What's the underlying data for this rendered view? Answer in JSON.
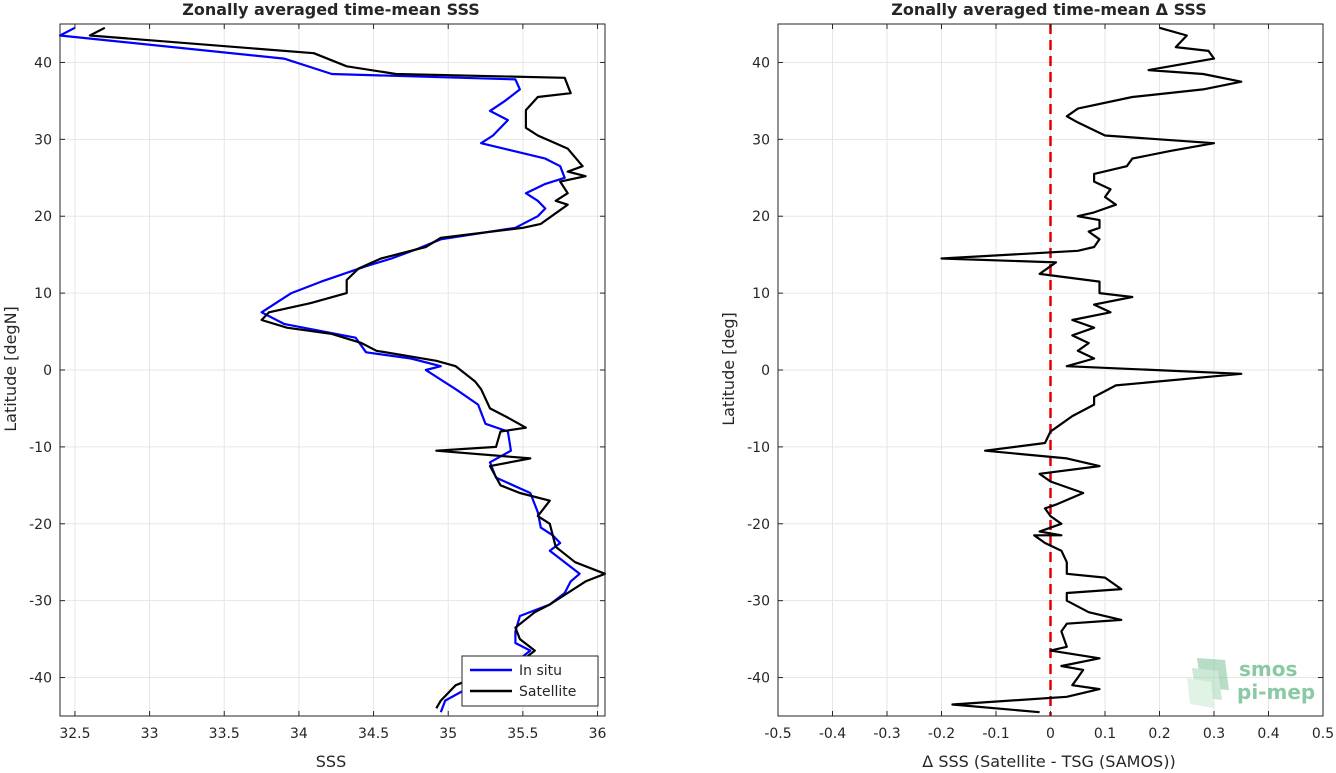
{
  "chart_data": [
    {
      "type": "line",
      "title": "Zonally averaged time-mean SSS",
      "xlabel": "SSS",
      "ylabel": "Latitude [degN]",
      "xlim": [
        32.4,
        36.05
      ],
      "ylim": [
        -45,
        45
      ],
      "xticks": [
        32.5,
        33,
        33.5,
        34,
        34.5,
        35,
        35.5,
        36
      ],
      "xtick_labels": [
        "32.5",
        "33",
        "33.5",
        "34",
        "34.5",
        "35",
        "35.5",
        "36"
      ],
      "yticks": [
        -40,
        -30,
        -20,
        -10,
        0,
        10,
        20,
        30,
        40
      ],
      "ytick_labels": [
        "-40",
        "-30",
        "-20",
        "-10",
        "0",
        "10",
        "20",
        "30",
        "40"
      ],
      "grid": true,
      "legend_position": "bottom-right",
      "series": [
        {
          "name": "In situ",
          "color": "#0000ff",
          "points": [
            [
              32.5,
              44.5
            ],
            [
              32.4,
              43.5
            ],
            [
              33.9,
              40.5
            ],
            [
              34.22,
              38.5
            ],
            [
              35.45,
              37.8
            ],
            [
              35.48,
              36.5
            ],
            [
              35.38,
              35
            ],
            [
              35.28,
              33.7
            ],
            [
              35.4,
              32.5
            ],
            [
              35.3,
              30.5
            ],
            [
              35.22,
              29.5
            ],
            [
              35.65,
              27.5
            ],
            [
              35.75,
              26.5
            ],
            [
              35.78,
              25
            ],
            [
              35.65,
              24.2
            ],
            [
              35.52,
              23
            ],
            [
              35.6,
              22
            ],
            [
              35.65,
              21
            ],
            [
              35.6,
              20
            ],
            [
              35.45,
              18.5
            ],
            [
              34.95,
              17
            ],
            [
              34.8,
              15.8
            ],
            [
              34.62,
              14.5
            ],
            [
              34.45,
              13.5
            ],
            [
              34.15,
              11.5
            ],
            [
              33.95,
              10
            ],
            [
              33.75,
              7.5
            ],
            [
              33.9,
              6
            ],
            [
              34.38,
              4.2
            ],
            [
              34.45,
              2.3
            ],
            [
              34.75,
              1.5
            ],
            [
              34.95,
              0.5
            ],
            [
              34.85,
              0
            ],
            [
              35.05,
              -2.5
            ],
            [
              35.2,
              -4.5
            ],
            [
              35.25,
              -7
            ],
            [
              35.4,
              -8
            ],
            [
              35.42,
              -10.5
            ],
            [
              35.28,
              -12
            ],
            [
              35.32,
              -14
            ],
            [
              35.55,
              -16
            ],
            [
              35.6,
              -18.5
            ],
            [
              35.62,
              -20.5
            ],
            [
              35.7,
              -21.5
            ],
            [
              35.75,
              -22.5
            ],
            [
              35.68,
              -23.5
            ],
            [
              35.78,
              -25
            ],
            [
              35.88,
              -26.5
            ],
            [
              35.82,
              -27.5
            ],
            [
              35.78,
              -29
            ],
            [
              35.68,
              -30.5
            ],
            [
              35.48,
              -32
            ],
            [
              35.45,
              -34
            ],
            [
              35.45,
              -35.5
            ],
            [
              35.55,
              -36.5
            ],
            [
              35.45,
              -38
            ],
            [
              35.18,
              -40
            ],
            [
              35.12,
              -41.5
            ],
            [
              34.98,
              -43
            ],
            [
              34.95,
              -44.5
            ]
          ]
        },
        {
          "name": "Satellite",
          "color": "#000000",
          "points": [
            [
              32.7,
              44.5
            ],
            [
              32.6,
              43.5
            ],
            [
              34.1,
              41.2
            ],
            [
              34.32,
              39.5
            ],
            [
              34.65,
              38.5
            ],
            [
              35.78,
              38
            ],
            [
              35.82,
              36
            ],
            [
              35.6,
              35.5
            ],
            [
              35.52,
              33.8
            ],
            [
              35.52,
              31.5
            ],
            [
              35.6,
              30.5
            ],
            [
              35.8,
              28.8
            ],
            [
              35.9,
              26.5
            ],
            [
              35.8,
              25.8
            ],
            [
              35.92,
              25.2
            ],
            [
              35.75,
              24.5
            ],
            [
              35.8,
              23
            ],
            [
              35.72,
              22
            ],
            [
              35.8,
              21.5
            ],
            [
              35.62,
              19
            ],
            [
              35.5,
              18.5
            ],
            [
              34.95,
              17.2
            ],
            [
              34.85,
              16
            ],
            [
              34.55,
              14.5
            ],
            [
              34.4,
              13.2
            ],
            [
              34.32,
              11.7
            ],
            [
              34.32,
              10
            ],
            [
              34.08,
              8.7
            ],
            [
              33.8,
              7.5
            ],
            [
              33.75,
              6.5
            ],
            [
              33.92,
              5.5
            ],
            [
              34.22,
              4.7
            ],
            [
              34.42,
              3.5
            ],
            [
              34.52,
              2.5
            ],
            [
              34.92,
              1.2
            ],
            [
              35.05,
              0.5
            ],
            [
              35.18,
              -1.5
            ],
            [
              35.22,
              -2.5
            ],
            [
              35.28,
              -5
            ],
            [
              35.38,
              -6
            ],
            [
              35.52,
              -7.5
            ],
            [
              35.35,
              -8
            ],
            [
              35.32,
              -10
            ],
            [
              34.92,
              -10.5
            ],
            [
              35.55,
              -11.5
            ],
            [
              35.28,
              -12.5
            ],
            [
              35.35,
              -15
            ],
            [
              35.48,
              -16
            ],
            [
              35.68,
              -17
            ],
            [
              35.6,
              -19
            ],
            [
              35.68,
              -20
            ],
            [
              35.72,
              -23
            ],
            [
              35.85,
              -25
            ],
            [
              36.05,
              -26.5
            ],
            [
              35.92,
              -27.5
            ],
            [
              35.68,
              -30.5
            ],
            [
              35.58,
              -31.5
            ],
            [
              35.45,
              -33.5
            ],
            [
              35.48,
              -35
            ],
            [
              35.58,
              -36.5
            ],
            [
              35.48,
              -38
            ],
            [
              35.18,
              -40
            ],
            [
              35.05,
              -41
            ],
            [
              34.95,
              -43
            ],
            [
              34.92,
              -44
            ]
          ]
        }
      ]
    },
    {
      "type": "line",
      "title": "Zonally averaged time-mean Δ SSS",
      "xlabel": "Δ SSS (Satellite - TSG (SAMOS))",
      "ylabel": "Latitude [deg]",
      "xlim": [
        -0.5,
        0.5
      ],
      "ylim": [
        -45,
        45
      ],
      "xticks": [
        -0.5,
        -0.4,
        -0.3,
        -0.2,
        -0.1,
        0,
        0.1,
        0.2,
        0.3,
        0.4,
        0.5
      ],
      "xtick_labels": [
        "-0.5",
        "-0.4",
        "-0.3",
        "-0.2",
        "-0.1",
        "0",
        "0.1",
        "0.2",
        "0.3",
        "0.4",
        "0.5"
      ],
      "yticks": [
        -40,
        -30,
        -20,
        -10,
        0,
        10,
        20,
        30,
        40
      ],
      "ytick_labels": [
        "-40",
        "-30",
        "-20",
        "-10",
        "0",
        "10",
        "20",
        "30",
        "40"
      ],
      "grid": true,
      "reference_line": {
        "x": 0,
        "color": "#e00000",
        "style": "dashed"
      },
      "series": [
        {
          "color": "#000000",
          "points": [
            [
              0.2,
              44.5
            ],
            [
              0.25,
              43.5
            ],
            [
              0.23,
              42
            ],
            [
              0.29,
              41.5
            ],
            [
              0.3,
              40.5
            ],
            [
              0.18,
              39
            ],
            [
              0.28,
              38.5
            ],
            [
              0.35,
              37.5
            ],
            [
              0.28,
              36.5
            ],
            [
              0.15,
              35.5
            ],
            [
              0.05,
              34
            ],
            [
              0.03,
              33
            ],
            [
              0.05,
              32.2
            ],
            [
              0.1,
              30.5
            ],
            [
              0.3,
              29.5
            ],
            [
              0.22,
              28.5
            ],
            [
              0.15,
              27.5
            ],
            [
              0.14,
              26.5
            ],
            [
              0.08,
              25.5
            ],
            [
              0.08,
              24.5
            ],
            [
              0.11,
              23.5
            ],
            [
              0.1,
              22.5
            ],
            [
              0.12,
              21.5
            ],
            [
              0.08,
              20.5
            ],
            [
              0.05,
              20
            ],
            [
              0.09,
              19.5
            ],
            [
              0.09,
              18.5
            ],
            [
              0.07,
              18
            ],
            [
              0.09,
              17
            ],
            [
              0.08,
              16
            ],
            [
              0.05,
              15.5
            ],
            [
              -0.2,
              14.5
            ],
            [
              0.01,
              14
            ],
            [
              0.0,
              13.5
            ],
            [
              -0.02,
              12.5
            ],
            [
              0.09,
              11.5
            ],
            [
              0.09,
              10
            ],
            [
              0.15,
              9.5
            ],
            [
              0.08,
              8.5
            ],
            [
              0.11,
              7.5
            ],
            [
              0.04,
              6.5
            ],
            [
              0.08,
              5.5
            ],
            [
              0.04,
              4.5
            ],
            [
              0.07,
              3.5
            ],
            [
              0.05,
              2.5
            ],
            [
              0.08,
              1.5
            ],
            [
              0.03,
              0.5
            ],
            [
              0.35,
              -0.5
            ],
            [
              0.12,
              -2
            ],
            [
              0.08,
              -3.5
            ],
            [
              0.08,
              -4.5
            ],
            [
              0.04,
              -6
            ],
            [
              0.01,
              -7.5
            ],
            [
              0.0,
              -8
            ],
            [
              -0.01,
              -9.5
            ],
            [
              -0.12,
              -10.5
            ],
            [
              0.03,
              -11.5
            ],
            [
              0.09,
              -12.5
            ],
            [
              -0.02,
              -13.5
            ],
            [
              0.0,
              -14.5
            ],
            [
              0.06,
              -16
            ],
            [
              0.01,
              -17.5
            ],
            [
              -0.01,
              -18
            ],
            [
              0.0,
              -19
            ],
            [
              0.02,
              -20
            ],
            [
              -0.02,
              -21
            ],
            [
              0.02,
              -21.5
            ],
            [
              -0.03,
              -21.5
            ],
            [
              -0.01,
              -22.5
            ],
            [
              0.02,
              -23.5
            ],
            [
              0.03,
              -25
            ],
            [
              0.03,
              -26.5
            ],
            [
              0.1,
              -27
            ],
            [
              0.13,
              -28.5
            ],
            [
              0.03,
              -29
            ],
            [
              0.03,
              -30
            ],
            [
              0.07,
              -31.5
            ],
            [
              0.13,
              -32.5
            ],
            [
              0.03,
              -33
            ],
            [
              0.02,
              -34
            ],
            [
              0.03,
              -36
            ],
            [
              0.0,
              -36.5
            ],
            [
              0.09,
              -37.5
            ],
            [
              0.02,
              -38.5
            ],
            [
              0.06,
              -39
            ],
            [
              0.05,
              -40
            ],
            [
              0.04,
              -41
            ],
            [
              0.09,
              -41.5
            ],
            [
              0.03,
              -42.5
            ],
            [
              -0.18,
              -43.5
            ],
            [
              -0.02,
              -44.5
            ]
          ]
        }
      ]
    }
  ],
  "legend": {
    "entries": [
      "In situ",
      "Satellite"
    ]
  },
  "logo": {
    "line1": "smos",
    "line2": "pi-mep"
  },
  "colors": {
    "in_situ": "#0000ff",
    "satellite": "#000000",
    "zero_line": "#e00000",
    "grid": "#e6e6e6",
    "logo": "#8ac9a4"
  }
}
